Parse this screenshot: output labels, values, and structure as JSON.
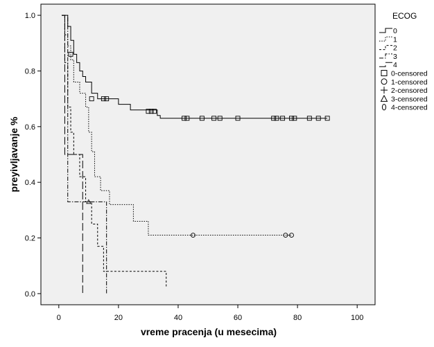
{
  "chart_data": {
    "type": "line",
    "subtype": "kaplan-meier",
    "title": "",
    "xlabel": "vreme pracenja (u mesecima)",
    "ylabel": "preyivljavanje %",
    "xlim": [
      -6,
      106
    ],
    "ylim": [
      -0.04,
      1.04
    ],
    "x_ticks": [
      0,
      20,
      40,
      60,
      80,
      100
    ],
    "y_ticks": [
      0.0,
      0.2,
      0.4,
      0.6,
      0.8,
      1.0
    ],
    "x_tick_labels": [
      "0",
      "20",
      "40",
      "60",
      "80",
      "100"
    ],
    "y_tick_labels": [
      "0.0",
      "0.2",
      "0.4",
      "0.6",
      "0.8",
      "1.0"
    ],
    "grid": false,
    "legend": {
      "title": "ECOG",
      "placement": "right",
      "entries": [
        "0",
        "1",
        "2",
        "3",
        "4",
        "0-censored",
        "1-censored",
        "2-censored",
        "3-censored",
        "4-censored"
      ]
    },
    "series": [
      {
        "name": "0",
        "style": "solid",
        "steps": [
          [
            1,
            1.0
          ],
          [
            3,
            0.96
          ],
          [
            4,
            0.91
          ],
          [
            5,
            0.86
          ],
          [
            6,
            0.83
          ],
          [
            7,
            0.8
          ],
          [
            8,
            0.78
          ],
          [
            9,
            0.76
          ],
          [
            11,
            0.74
          ],
          [
            11,
            0.72
          ],
          [
            13,
            0.7
          ],
          [
            20,
            0.68
          ],
          [
            24,
            0.66
          ],
          [
            33,
            0.64
          ],
          [
            34,
            0.63
          ],
          [
            90,
            0.63
          ]
        ],
        "censored": [
          [
            4,
            0.86
          ],
          [
            11,
            0.7
          ],
          [
            15,
            0.7
          ],
          [
            16,
            0.7
          ],
          [
            30,
            0.655
          ],
          [
            31,
            0.655
          ],
          [
            32,
            0.655
          ],
          [
            42,
            0.63
          ],
          [
            43,
            0.63
          ],
          [
            48,
            0.63
          ],
          [
            52,
            0.63
          ],
          [
            54,
            0.63
          ],
          [
            60,
            0.63
          ],
          [
            72,
            0.63
          ],
          [
            73,
            0.63
          ],
          [
            75,
            0.63
          ],
          [
            78,
            0.63
          ],
          [
            79,
            0.63
          ],
          [
            84,
            0.63
          ],
          [
            87,
            0.63
          ],
          [
            90,
            0.63
          ]
        ]
      },
      {
        "name": "1",
        "style": "dotted",
        "steps": [
          [
            1,
            1.0
          ],
          [
            2,
            0.93
          ],
          [
            3,
            0.89
          ],
          [
            4,
            0.84
          ],
          [
            5,
            0.76
          ],
          [
            7,
            0.72
          ],
          [
            9,
            0.67
          ],
          [
            10,
            0.58
          ],
          [
            11,
            0.51
          ],
          [
            12,
            0.42
          ],
          [
            14,
            0.37
          ],
          [
            17,
            0.32
          ],
          [
            25,
            0.26
          ],
          [
            30,
            0.21
          ],
          [
            78,
            0.21
          ]
        ],
        "censored": [
          [
            45,
            0.21
          ],
          [
            76,
            0.21
          ],
          [
            78,
            0.21
          ]
        ]
      },
      {
        "name": "2",
        "style": "short-dash",
        "steps": [
          [
            1,
            1.0
          ],
          [
            2,
            0.83
          ],
          [
            3,
            0.67
          ],
          [
            4,
            0.58
          ],
          [
            5,
            0.5
          ],
          [
            7,
            0.42
          ],
          [
            9,
            0.33
          ],
          [
            11,
            0.25
          ],
          [
            13,
            0.17
          ],
          [
            15,
            0.08
          ],
          [
            36,
            0.08
          ],
          [
            36,
            0.02
          ]
        ],
        "censored": []
      },
      {
        "name": "3",
        "style": "dash-dot",
        "steps": [
          [
            1,
            1.0
          ],
          [
            3,
            0.33
          ],
          [
            16,
            0.33
          ],
          [
            16,
            0.0
          ]
        ],
        "censored": [
          [
            10,
            0.33
          ]
        ]
      },
      {
        "name": "4",
        "style": "long-dash",
        "steps": [
          [
            1,
            1.0
          ],
          [
            2,
            0.5
          ],
          [
            8,
            0.5
          ],
          [
            8,
            0.0
          ]
        ],
        "censored": []
      }
    ]
  }
}
